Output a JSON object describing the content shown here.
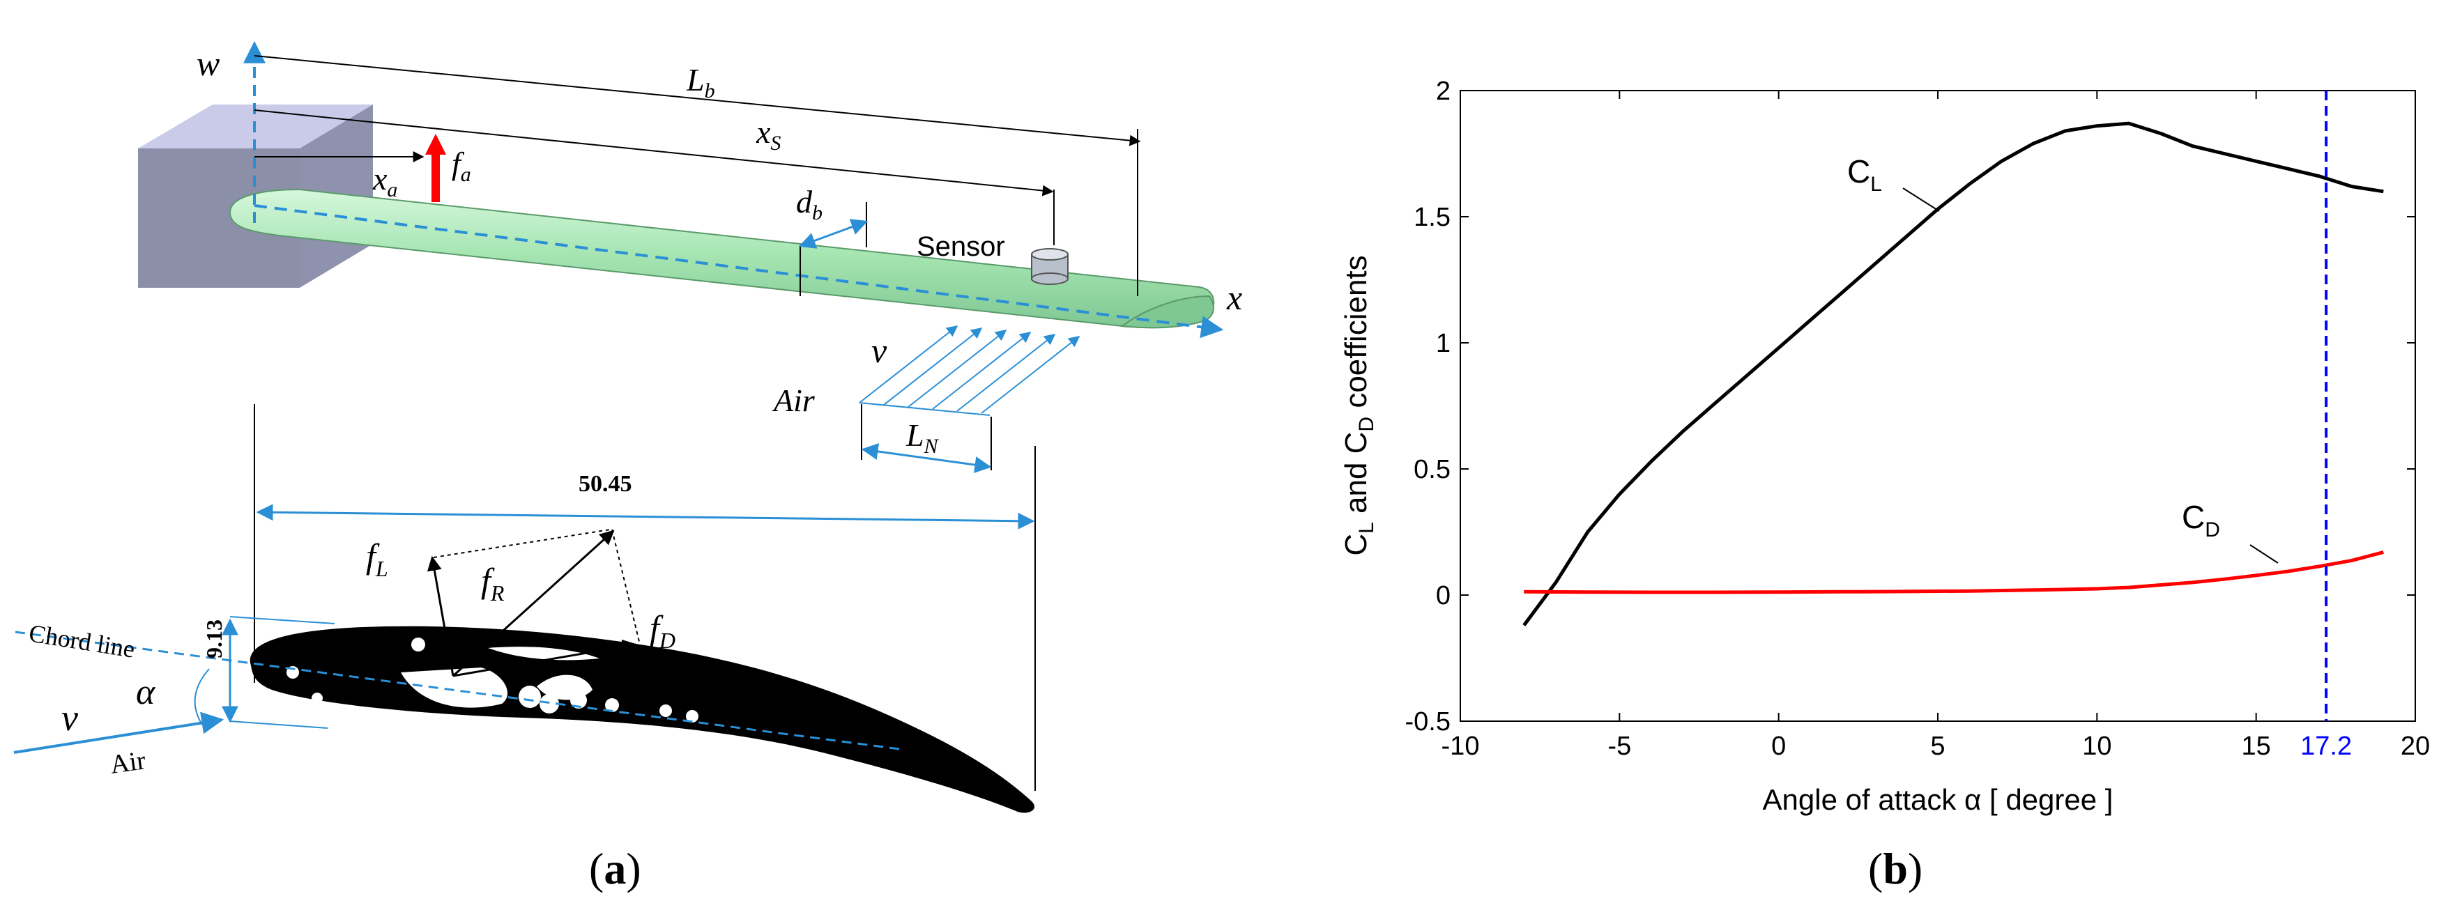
{
  "panel_a": {
    "caption": "(a)",
    "beam": {
      "axis_w": "w",
      "axis_x": "x",
      "Lb_main": "L",
      "Lb_sub": "b",
      "xs_main": "x",
      "xs_sub": "S",
      "xa_main": "x",
      "xa_sub": "a",
      "fa_main": "f",
      "fa_sub": "a",
      "db_main": "d",
      "db_sub": "b",
      "sensor": "Sensor",
      "v": "v",
      "air": "Air",
      "LN_main": "L",
      "LN_sub": "N"
    },
    "airfoil": {
      "chord_dim": "50.45",
      "thickness_dim": "9.13",
      "chord_line": "Chord line",
      "alpha": "α",
      "v": "v",
      "air": "Air",
      "fL_main": "f",
      "fL_sub": "L",
      "fR_main": "f",
      "fR_sub": "R",
      "fD_main": "f",
      "fD_sub": "D"
    },
    "colors": {
      "beam": "#a8e6b4",
      "wall": "#8c8fa8",
      "dimension": "#2b8fd6",
      "force": "#ff0000"
    }
  },
  "panel_b": {
    "caption": "(b)",
    "chart_data": {
      "type": "line",
      "xlabel": "Angle of attack  α   [ degree ]",
      "ylabel_parts": [
        "C",
        "L",
        " and  C",
        "D",
        " coefficients"
      ],
      "xlim": [
        -10,
        20
      ],
      "ylim": [
        -0.5,
        2
      ],
      "xticks": [
        "-10",
        "-5",
        "0",
        "5",
        "10",
        "15",
        "20"
      ],
      "yticks": [
        "-0.5",
        "0",
        "0.5",
        "1",
        "1.5",
        "2"
      ],
      "marker": {
        "x": 17.2,
        "label": "17.2",
        "color": "#0000ff"
      },
      "series": [
        {
          "name": "C_L",
          "label_main": "C",
          "label_sub": "L",
          "color": "#000000",
          "x": [
            -8,
            -7,
            -6,
            -5,
            -4,
            -3,
            -2,
            -1,
            0,
            1,
            2,
            3,
            4,
            5,
            6,
            7,
            8,
            9,
            10,
            11,
            12,
            13,
            14,
            15,
            16,
            17,
            18,
            19
          ],
          "y": [
            -0.12,
            0.05,
            0.25,
            0.4,
            0.53,
            0.65,
            0.76,
            0.87,
            0.98,
            1.09,
            1.2,
            1.31,
            1.42,
            1.53,
            1.63,
            1.72,
            1.79,
            1.84,
            1.86,
            1.87,
            1.83,
            1.78,
            1.75,
            1.72,
            1.69,
            1.66,
            1.62,
            1.6
          ]
        },
        {
          "name": "C_D",
          "label_main": "C",
          "label_sub": "D",
          "color": "#ff0000",
          "x": [
            -8,
            -6,
            -4,
            -2,
            0,
            2,
            4,
            6,
            8,
            10,
            11,
            12,
            13,
            14,
            15,
            16,
            17,
            18,
            19
          ],
          "y": [
            0.013,
            0.012,
            0.011,
            0.011,
            0.012,
            0.013,
            0.014,
            0.016,
            0.02,
            0.025,
            0.03,
            0.04,
            0.05,
            0.063,
            0.078,
            0.094,
            0.114,
            0.137,
            0.17
          ]
        }
      ]
    }
  }
}
